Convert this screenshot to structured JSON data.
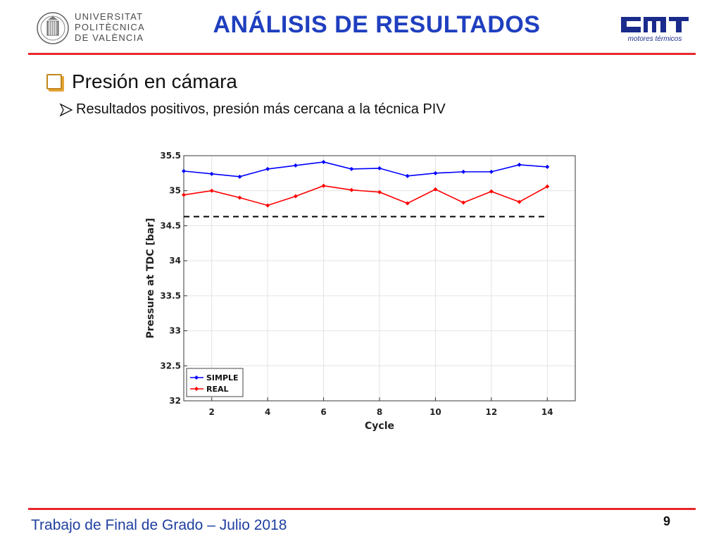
{
  "header": {
    "university_lines": [
      "UNIVERSITAT",
      "POLITÈCNICA",
      "DE VALÈNCIA"
    ],
    "title": "ANÁLISIS DE RESULTADOS",
    "cmt_logo_text": "CMT",
    "cmt_subtitle": "motores térmicos"
  },
  "content": {
    "bullet1": "Presión en cámara",
    "bullet2": "Resultados positivos, presión más cercana a la técnica PIV"
  },
  "footer": {
    "text": "Trabajo de Final de Grado – Julio 2018",
    "page_number": "9"
  },
  "colors": {
    "accent_red": "#e8262a",
    "title_blue": "#1f3fbf",
    "series_simple": "#0000ff",
    "series_real": "#ff0000"
  },
  "chart_data": {
    "type": "line",
    "title": "",
    "xlabel": "Cycle",
    "ylabel": "Pressure at TDC [bar]",
    "xlim": [
      1,
      15
    ],
    "ylim": [
      32,
      35.5
    ],
    "xticks": [
      2,
      4,
      6,
      8,
      10,
      12,
      14
    ],
    "yticks": [
      32,
      32.5,
      33,
      33.5,
      34,
      34.5,
      35,
      35.5
    ],
    "ytick_labels": [
      "32",
      "32.5",
      "33",
      "33.5",
      "34",
      "34.5",
      "35",
      "35.5"
    ],
    "grid": true,
    "legend_position": "bottom-left",
    "x": [
      1,
      2,
      3,
      4,
      5,
      6,
      7,
      8,
      9,
      10,
      11,
      12,
      13,
      14
    ],
    "series": [
      {
        "name": "SIMPLE",
        "color": "#0000ff",
        "values": [
          35.28,
          35.24,
          35.2,
          35.31,
          35.36,
          35.41,
          35.31,
          35.32,
          35.21,
          35.25,
          35.27,
          35.27,
          35.37,
          35.34
        ]
      },
      {
        "name": "REAL",
        "color": "#ff0000",
        "values": [
          34.94,
          35.0,
          34.9,
          34.79,
          34.92,
          35.07,
          35.01,
          34.98,
          34.82,
          35.02,
          34.83,
          34.99,
          34.84,
          35.06
        ]
      }
    ],
    "reference_line": {
      "style": "dashed",
      "color": "#000000",
      "y": 34.63,
      "x_range": [
        1,
        14
      ]
    }
  }
}
